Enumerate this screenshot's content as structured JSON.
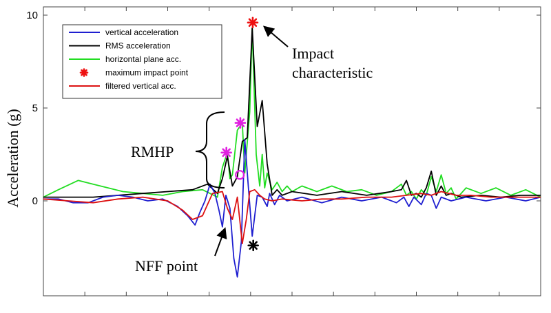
{
  "chart_data": {
    "type": "line",
    "title": "",
    "xlabel": "",
    "ylabel": "Acceleration (g)",
    "ylim": [
      -4.3,
      10
    ],
    "xlim": [
      0,
      100
    ],
    "y_ticks": [
      0,
      5,
      10
    ],
    "y_tick_labels": [
      "0",
      "5",
      "10"
    ],
    "x_tick_count": 12,
    "grid": false,
    "legend_position": "top-left",
    "legend": [
      {
        "label": "vertical acceleration",
        "color": "#1f1fd0",
        "marker": "line"
      },
      {
        "label": "RMS acceleration",
        "color": "#000000",
        "marker": "line"
      },
      {
        "label": "horizontal plane acc.",
        "color": "#22dd22",
        "marker": "line"
      },
      {
        "label": "maximum impact point",
        "color": "#ee1111",
        "marker": "asterisk"
      },
      {
        "label": "filtered vertical acc.",
        "color": "#dd1111",
        "marker": "line"
      }
    ],
    "series": [
      {
        "name": "horizontal plane acc.",
        "color": "#22dd22",
        "x": [
          0,
          3,
          7,
          10,
          13,
          16,
          20,
          24,
          28,
          32,
          33.5,
          35,
          36,
          37,
          37.5,
          38,
          39,
          40,
          40.5,
          41.5,
          42,
          42.8,
          43.5,
          44,
          44.5,
          45,
          46,
          47,
          48,
          49,
          50,
          52,
          55,
          58,
          61,
          64,
          67,
          70,
          72,
          73,
          74,
          75,
          76,
          77,
          78,
          79,
          80,
          81,
          82,
          83,
          85,
          88,
          91,
          94,
          97,
          100
        ],
        "values": [
          0.2,
          0.6,
          1.1,
          0.9,
          0.7,
          0.5,
          0.4,
          0.3,
          0.5,
          0.6,
          0.4,
          0.2,
          1.8,
          2.6,
          1.2,
          1.4,
          3.8,
          4.2,
          1.5,
          4.8,
          9.3,
          2.5,
          0.8,
          2.5,
          0.7,
          1.5,
          0.6,
          1.0,
          0.5,
          0.8,
          0.5,
          0.8,
          0.5,
          0.8,
          0.5,
          0.6,
          0.3,
          0.5,
          0.9,
          0.3,
          0.5,
          0.1,
          0.6,
          0.3,
          1.3,
          0.5,
          1.4,
          0.4,
          0.7,
          0.1,
          0.7,
          0.4,
          0.7,
          0.3,
          0.6,
          0.2
        ]
      },
      {
        "name": "RMS acceleration",
        "color": "#000000",
        "x": [
          0,
          10,
          20,
          30,
          33,
          35,
          36,
          37,
          38,
          39,
          40,
          41,
          42,
          43,
          44,
          45,
          46,
          47,
          48,
          50,
          55,
          60,
          65,
          70,
          72,
          73,
          74,
          75,
          76,
          77,
          78,
          79,
          80,
          81,
          82,
          84,
          88,
          92,
          96,
          100
        ],
        "values": [
          0.2,
          0.2,
          0.4,
          0.6,
          0.9,
          0.4,
          1.2,
          2.4,
          0.8,
          1.3,
          3.2,
          3.4,
          9.3,
          4.0,
          5.4,
          2.0,
          0.3,
          0.6,
          0.3,
          0.5,
          0.3,
          0.5,
          0.3,
          0.5,
          0.6,
          1.1,
          0.3,
          0.4,
          0.2,
          0.7,
          1.6,
          0.3,
          0.8,
          0.3,
          0.4,
          0.2,
          0.3,
          0.2,
          0.3,
          0.3
        ]
      },
      {
        "name": "vertical acceleration",
        "color": "#1f1fd0",
        "x": [
          0,
          3,
          6,
          9,
          12,
          15,
          18,
          21,
          24,
          27,
          29,
          30.5,
          31.5,
          32.5,
          33.5,
          34.5,
          35.3,
          36,
          36.7,
          37.5,
          38.3,
          39,
          39.8,
          40.5,
          41.2,
          42,
          43,
          44,
          45,
          45.5,
          46.5,
          47.5,
          49,
          52,
          56,
          60,
          64,
          68,
          71,
          72.5,
          73.5,
          74.5,
          76,
          77,
          78,
          79,
          80,
          82,
          85,
          89,
          93,
          97,
          100
        ],
        "values": [
          0.1,
          0.1,
          -0.1,
          -0.1,
          0.2,
          0.3,
          0.2,
          0.0,
          0.1,
          -0.3,
          -0.8,
          -1.3,
          -0.6,
          0.0,
          0.9,
          0.4,
          -0.5,
          -1.4,
          0.3,
          -0.4,
          -3.1,
          -4.1,
          -2.2,
          3.3,
          0.8,
          -1.9,
          0.3,
          0.2,
          -0.3,
          0.4,
          -0.2,
          0.3,
          0.0,
          0.2,
          -0.1,
          0.2,
          0.0,
          0.2,
          -0.1,
          0.2,
          -0.3,
          0.2,
          -0.2,
          0.4,
          0.3,
          -0.4,
          0.2,
          0.0,
          0.2,
          0.0,
          0.2,
          0.0,
          0.2
        ]
      },
      {
        "name": "filtered vertical acc.",
        "color": "#dd1111",
        "x": [
          0,
          5,
          10,
          15,
          20,
          25,
          28,
          30,
          32,
          34,
          36,
          37,
          38,
          39,
          40,
          40.8,
          41.5,
          42.5,
          43.5,
          44.5,
          46,
          48,
          52,
          56,
          60,
          65,
          70,
          73,
          76,
          78,
          80,
          83,
          86,
          90,
          95,
          100
        ],
        "values": [
          0.1,
          0.0,
          -0.1,
          0.1,
          0.2,
          0.0,
          -0.5,
          -1.0,
          -0.8,
          0.4,
          0.5,
          -0.4,
          -1.0,
          0.2,
          -2.3,
          -1.0,
          0.5,
          0.6,
          0.3,
          0.1,
          0.0,
          0.1,
          0.0,
          0.1,
          0.1,
          0.2,
          0.2,
          0.3,
          0.4,
          0.3,
          0.5,
          0.3,
          0.3,
          0.2,
          0.2,
          0.2
        ]
      }
    ],
    "annotations": {
      "impact": {
        "text_line1": "Impact",
        "text_line2": "characteristic",
        "x": 42.1,
        "y": 9.6
      },
      "rmhp": {
        "text": "RMHP",
        "points": [
          {
            "x": 36.8,
            "y": 2.6
          },
          {
            "x": 39.6,
            "y": 4.2
          }
        ]
      },
      "rmhp_circle": {
        "x": 39.5,
        "y": 1.4
      },
      "nff": {
        "text": "NFF point",
        "x": 42.2,
        "y": -2.4
      }
    }
  }
}
